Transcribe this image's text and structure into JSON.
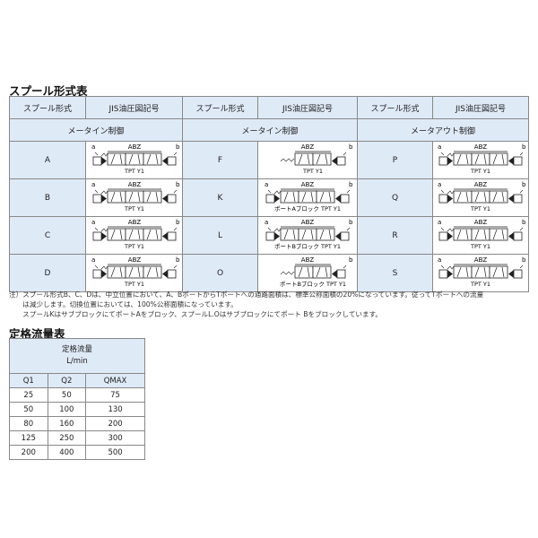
{
  "spool_table": {
    "title": "スプール形式表",
    "col_spool": "スプール形式",
    "col_symbol": "JIS油圧図記号",
    "groups": [
      "メータイン制御",
      "メータイン制御",
      "メータアウト制御"
    ],
    "columns": [
      [
        {
          "spool": "A",
          "label": "TPT Y1",
          "type": "3pos"
        },
        {
          "spool": "B",
          "label": "TPT Y1",
          "type": "3pos"
        },
        {
          "spool": "C",
          "label": "TPT Y1",
          "type": "3pos"
        },
        {
          "spool": "D",
          "label": "TPT Y1",
          "type": "3pos"
        }
      ],
      [
        {
          "spool": "F",
          "label": "TPT Y1",
          "type": "2pos"
        },
        {
          "spool": "K",
          "label": "ポートAブロック TPT Y1",
          "type": "3pos"
        },
        {
          "spool": "L",
          "label": "ポートBブロック TPT Y1",
          "type": "3pos"
        },
        {
          "spool": "O",
          "label": "ポートBブロック TPT Y1",
          "type": "2pos"
        }
      ],
      [
        {
          "spool": "P",
          "label": "TPT Y1",
          "type": "3pos"
        },
        {
          "spool": "Q",
          "label": "TPT Y1",
          "type": "3pos"
        },
        {
          "spool": "R",
          "label": "TPT Y1",
          "type": "3pos"
        },
        {
          "spool": "S",
          "label": "TPT Y1",
          "type": "3pos"
        }
      ]
    ],
    "symbol_top": "ABZ",
    "symbol_a": "a",
    "symbol_b": "b"
  },
  "notes": [
    "注）スプール形式B、C、Dは、中立位置において、A、BポートからTポートへの通路面積は、標準公称面積の20%になっています。従ってTポートへの流量",
    "　　は減少します。切換位置においては、100%公称面積になっています。",
    "　　スプールKはサブブロックにてポートAをブロック、スプールL.Oはサブブロックにてポート Bをブロックしています。"
  ],
  "flow_table": {
    "title": "定格流量表",
    "header": "定格流量",
    "unit": "L/min",
    "columns": [
      "Q1",
      "Q2",
      "QMAX"
    ],
    "rows": [
      [
        "25",
        "50",
        "75"
      ],
      [
        "50",
        "100",
        "130"
      ],
      [
        "80",
        "160",
        "200"
      ],
      [
        "125",
        "250",
        "300"
      ],
      [
        "200",
        "400",
        "500"
      ]
    ]
  },
  "colors": {
    "header_bg": "#dfeaf7",
    "border": "#888888"
  }
}
